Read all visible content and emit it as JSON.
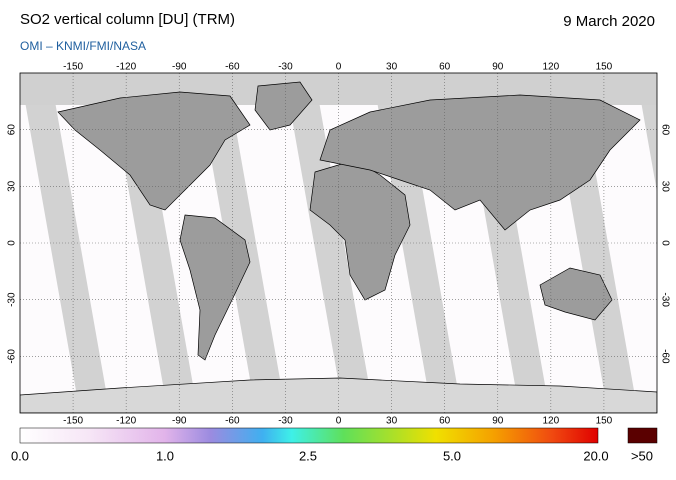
{
  "header": {
    "title": "SO2 vertical column [DU] (TRM)",
    "date": "9 March 2020",
    "source": "OMI  –  KNMI/FMI/NASA"
  },
  "map": {
    "lon_ticks": [
      -150,
      -120,
      -90,
      -60,
      -30,
      0,
      30,
      60,
      90,
      120,
      150
    ],
    "lat_ticks": [
      60,
      30,
      0,
      -30,
      -60
    ],
    "lon_range": [
      -180,
      180
    ],
    "lat_range": [
      -90,
      90
    ]
  },
  "colorbar": {
    "labels": [
      "0.0",
      "1.0",
      "2.5",
      "5.0",
      "20.0",
      ">50"
    ]
  }
}
